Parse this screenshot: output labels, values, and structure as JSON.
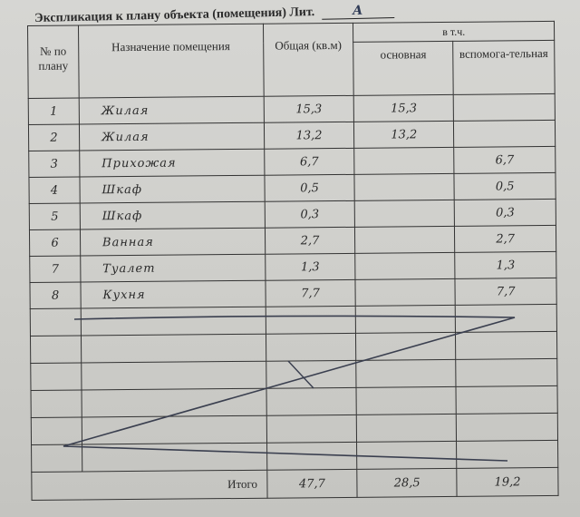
{
  "document": {
    "title": "Экспликация к плану объекта (помещения) Лит.",
    "litera": "А",
    "headers": {
      "number": "№ по плану",
      "purpose": "Назначение помещения",
      "total": "Общая (кв.м)",
      "including": "в т.ч.",
      "main": "основная",
      "auxiliary": "вспомога-тельная"
    },
    "rows": [
      {
        "no": "1",
        "name": "Жилая",
        "total": "15,3",
        "main": "15,3",
        "aux": ""
      },
      {
        "no": "2",
        "name": "Жилая",
        "total": "13,2",
        "main": "13,2",
        "aux": ""
      },
      {
        "no": "3",
        "name": "Прихожая",
        "total": "6,7",
        "main": "",
        "aux": "6,7"
      },
      {
        "no": "4",
        "name": "Шкаф",
        "total": "0,5",
        "main": "",
        "aux": "0,5"
      },
      {
        "no": "5",
        "name": "Шкаф",
        "total": "0,3",
        "main": "",
        "aux": "0,3"
      },
      {
        "no": "6",
        "name": "Ванная",
        "total": "2,7",
        "main": "",
        "aux": "2,7"
      },
      {
        "no": "7",
        "name": "Туалет",
        "total": "1,3",
        "main": "",
        "aux": "1,3"
      },
      {
        "no": "8",
        "name": "Кухня",
        "total": "7,7",
        "main": "",
        "aux": "7,7"
      }
    ],
    "totals": {
      "label": "Итого",
      "total": "47,7",
      "main": "28,5",
      "aux": "19,2"
    },
    "ink_color": "#333b50"
  }
}
